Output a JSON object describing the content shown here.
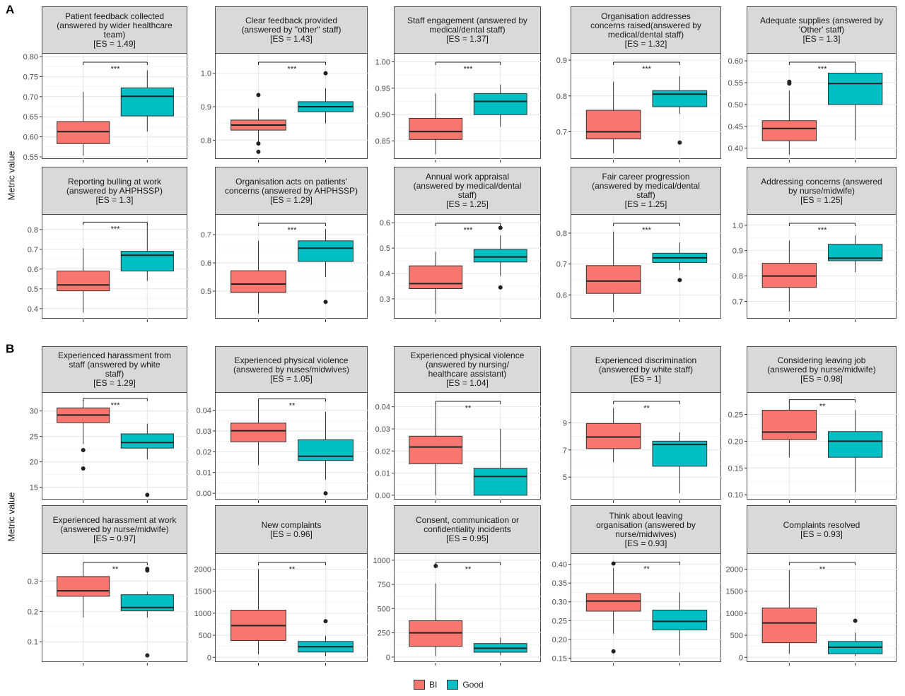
{
  "figure": {
    "panel_labels": [
      "A",
      "B"
    ],
    "y_axis_label": "Metric value",
    "legend": [
      {
        "name": "BI",
        "color": "#F8766D"
      },
      {
        "name": "Good",
        "color": "#00BFC4"
      }
    ]
  },
  "chart_data": [
    {
      "type": "box",
      "panel": "A",
      "title": [
        "Patient feedback collected",
        "(answered by wider healthcare",
        "team)",
        "[ES = 1.49]"
      ],
      "ylim": [
        0.55,
        0.8
      ],
      "yticks": [
        "0.55",
        "0.60",
        "0.65",
        "0.70",
        "0.75",
        "0.80"
      ],
      "significance": "***",
      "series": [
        {
          "name": "BI",
          "whisker_low": 0.553,
          "q1": 0.583,
          "median": 0.613,
          "q3": 0.638,
          "whisker_high": 0.712,
          "outliers": []
        },
        {
          "name": "Good",
          "whisker_low": 0.613,
          "q1": 0.652,
          "median": 0.701,
          "q3": 0.722,
          "whisker_high": 0.766,
          "outliers": []
        }
      ]
    },
    {
      "type": "box",
      "panel": "A",
      "title": [
        "Clear feedback provided",
        "(answered by \"other\" staff)",
        "[ES = 1.43]"
      ],
      "ylim": [
        0.75,
        1.05
      ],
      "yticks": [
        "0.8",
        "0.9",
        "1.0"
      ],
      "significance": "***",
      "series": [
        {
          "name": "BI",
          "whisker_low": 0.79,
          "q1": 0.83,
          "median": 0.845,
          "q3": 0.86,
          "whisker_high": 0.895,
          "outliers": [
            0.935,
            0.79,
            0.765
          ]
        },
        {
          "name": "Good",
          "whisker_low": 0.85,
          "q1": 0.885,
          "median": 0.9,
          "q3": 0.915,
          "whisker_high": 0.955,
          "outliers": [
            1.0
          ]
        }
      ]
    },
    {
      "type": "box",
      "panel": "A",
      "title": [
        "Staff engagement (answered by",
        "medical/dental staff)",
        "[ES = 1.37]"
      ],
      "ylim": [
        0.82,
        1.01
      ],
      "yticks": [
        "0.85",
        "0.90",
        "0.95",
        "1.00"
      ],
      "significance": "***",
      "series": [
        {
          "name": "BI",
          "whisker_low": 0.825,
          "q1": 0.853,
          "median": 0.868,
          "q3": 0.893,
          "whisker_high": 0.94,
          "outliers": []
        },
        {
          "name": "Good",
          "whisker_low": 0.877,
          "q1": 0.9,
          "median": 0.925,
          "q3": 0.94,
          "whisker_high": 0.957,
          "outliers": []
        }
      ]
    },
    {
      "type": "box",
      "panel": "A",
      "title": [
        "Organisation addresses",
        "concerns raised(answered by",
        "medical/dental staff)",
        "[ES = 1.32]"
      ],
      "ylim": [
        0.63,
        0.91
      ],
      "yticks": [
        "0.7",
        "0.8",
        "0.9"
      ],
      "significance": "***",
      "series": [
        {
          "name": "BI",
          "whisker_low": 0.64,
          "q1": 0.68,
          "median": 0.7,
          "q3": 0.76,
          "whisker_high": 0.84,
          "outliers": []
        },
        {
          "name": "Good",
          "whisker_low": 0.75,
          "q1": 0.77,
          "median": 0.805,
          "q3": 0.815,
          "whisker_high": 0.855,
          "outliers": [
            0.67
          ]
        }
      ]
    },
    {
      "type": "box",
      "panel": "A",
      "title": [
        "Adequate supplies (answered by",
        "'Other' staff)",
        "[ES = 1.3]"
      ],
      "ylim": [
        0.38,
        0.61
      ],
      "yticks": [
        "0.40",
        "0.45",
        "0.50",
        "0.55",
        "0.60"
      ],
      "significance": "***",
      "series": [
        {
          "name": "BI",
          "whisker_low": 0.385,
          "q1": 0.417,
          "median": 0.445,
          "q3": 0.463,
          "whisker_high": 0.532,
          "outliers": [
            0.552,
            0.548
          ]
        },
        {
          "name": "Good",
          "whisker_low": 0.418,
          "q1": 0.5,
          "median": 0.548,
          "q3": 0.572,
          "whisker_high": 0.592,
          "outliers": []
        }
      ]
    },
    {
      "type": "box",
      "panel": "A",
      "title": [
        "Reporting bulling at work",
        "(answered by AHPHSSP)",
        "[ES = 1.3]"
      ],
      "ylim": [
        0.36,
        0.86
      ],
      "yticks": [
        "0.4",
        "0.5",
        "0.6",
        "0.7",
        "0.8"
      ],
      "significance": "***",
      "series": [
        {
          "name": "BI",
          "whisker_low": 0.38,
          "q1": 0.49,
          "median": 0.52,
          "q3": 0.59,
          "whisker_high": 0.705,
          "outliers": []
        },
        {
          "name": "Good",
          "whisker_low": 0.54,
          "q1": 0.59,
          "median": 0.67,
          "q3": 0.69,
          "whisker_high": 0.83,
          "outliers": []
        }
      ]
    },
    {
      "type": "box",
      "panel": "A",
      "title": [
        "Organisation acts on patients'",
        "concerns (answered by AHPHSSP)",
        "[ES = 1.29]"
      ],
      "ylim": [
        0.41,
        0.76
      ],
      "yticks": [
        "0.5",
        "0.6",
        "0.7"
      ],
      "significance": "***",
      "series": [
        {
          "name": "BI",
          "whisker_low": 0.42,
          "q1": 0.495,
          "median": 0.525,
          "q3": 0.572,
          "whisker_high": 0.678,
          "outliers": []
        },
        {
          "name": "Good",
          "whisker_low": 0.55,
          "q1": 0.605,
          "median": 0.652,
          "q3": 0.678,
          "whisker_high": 0.72,
          "outliers": [
            0.462
          ]
        }
      ]
    },
    {
      "type": "box",
      "panel": "A",
      "title": [
        "Annual work appraisal",
        "(answered by medical/dental",
        "staff)",
        "[ES = 1.25]"
      ],
      "ylim": [
        0.23,
        0.62
      ],
      "yticks": [
        "0.3",
        "0.4",
        "0.5",
        "0.6"
      ],
      "significance": "***",
      "series": [
        {
          "name": "BI",
          "whisker_low": 0.24,
          "q1": 0.34,
          "median": 0.36,
          "q3": 0.43,
          "whisker_high": 0.485,
          "outliers": []
        },
        {
          "name": "Good",
          "whisker_low": 0.39,
          "q1": 0.445,
          "median": 0.465,
          "q3": 0.495,
          "whisker_high": 0.55,
          "outliers": [
            0.58,
            0.345
          ]
        }
      ]
    },
    {
      "type": "box",
      "panel": "A",
      "title": [
        "Fair career progression",
        "(answered by medical/dental",
        "staff)",
        "[ES = 1.25]"
      ],
      "ylim": [
        0.53,
        0.85
      ],
      "yticks": [
        "0.6",
        "0.7",
        "0.8"
      ],
      "significance": "***",
      "series": [
        {
          "name": "BI",
          "whisker_low": 0.545,
          "q1": 0.605,
          "median": 0.645,
          "q3": 0.695,
          "whisker_high": 0.805,
          "outliers": []
        },
        {
          "name": "Good",
          "whisker_low": 0.68,
          "q1": 0.705,
          "median": 0.72,
          "q3": 0.735,
          "whisker_high": 0.77,
          "outliers": [
            0.648
          ]
        }
      ]
    },
    {
      "type": "box",
      "panel": "A",
      "title": [
        "Addressing concerns (answered",
        "by nurse/midwife)",
        "[ES = 1.25]"
      ],
      "ylim": [
        0.64,
        1.03
      ],
      "yticks": [
        "0.7",
        "0.8",
        "0.9",
        "1.0"
      ],
      "significance": "***",
      "series": [
        {
          "name": "BI",
          "whisker_low": 0.66,
          "q1": 0.755,
          "median": 0.8,
          "q3": 0.85,
          "whisker_high": 0.94,
          "outliers": []
        },
        {
          "name": "Good",
          "whisker_low": 0.815,
          "q1": 0.86,
          "median": 0.87,
          "q3": 0.925,
          "whisker_high": 0.96,
          "outliers": []
        }
      ]
    },
    {
      "type": "box",
      "panel": "B",
      "title": [
        "Experienced harassment from",
        "staff (answered by white",
        "staff)",
        "[ES = 1.29]"
      ],
      "ylim": [
        13,
        33
      ],
      "yticks": [
        "15",
        "20",
        "25",
        "30"
      ],
      "significance": "***",
      "series": [
        {
          "name": "BI",
          "whisker_low": 23.5,
          "q1": 27.7,
          "median": 29.2,
          "q3": 30.6,
          "whisker_high": 32.2,
          "outliers": [
            22.3,
            18.7
          ]
        },
        {
          "name": "Good",
          "whisker_low": 20.5,
          "q1": 22.7,
          "median": 23.8,
          "q3": 25.5,
          "whisker_high": 27.5,
          "outliers": [
            13.5
          ]
        }
      ]
    },
    {
      "type": "box",
      "panel": "B",
      "title": [
        "Experienced physical violence",
        "(answered by nuses/midwives)",
        "[ES = 1.05]"
      ],
      "ylim": [
        -0.002,
        0.047
      ],
      "yticks": [
        "0.00",
        "0.01",
        "0.02",
        "0.03",
        "0.04"
      ],
      "significance": "**",
      "series": [
        {
          "name": "BI",
          "whisker_low": 0.0135,
          "q1": 0.0248,
          "median": 0.0301,
          "q3": 0.0338,
          "whisker_high": 0.0448,
          "outliers": []
        },
        {
          "name": "Good",
          "whisker_low": 0.0065,
          "q1": 0.0158,
          "median": 0.0178,
          "q3": 0.0258,
          "whisker_high": 0.0392,
          "outliers": [
            0.0
          ]
        }
      ]
    },
    {
      "type": "box",
      "panel": "B",
      "title": [
        "Experienced physical violence",
        "(answered by nursing/",
        "healthcare assistant)",
        "[ES = 1.04]"
      ],
      "ylim": [
        -0.001,
        0.045
      ],
      "yticks": [
        "0.00",
        "0.01",
        "0.02",
        "0.03",
        "0.04"
      ],
      "significance": "**",
      "series": [
        {
          "name": "BI",
          "whisker_low": 0.0,
          "q1": 0.0142,
          "median": 0.0218,
          "q3": 0.0267,
          "whisker_high": 0.0418,
          "outliers": []
        },
        {
          "name": "Good",
          "whisker_low": 0.0,
          "q1": 0.0,
          "median": 0.0085,
          "q3": 0.0122,
          "whisker_high": 0.03,
          "outliers": []
        }
      ]
    },
    {
      "type": "box",
      "panel": "B",
      "title": [
        "Experienced discrimination",
        "(answered by white staff)",
        "[ES = 1]"
      ],
      "ylim": [
        3.5,
        11
      ],
      "yticks": [
        "5",
        "7",
        "9"
      ],
      "significance": "**",
      "series": [
        {
          "name": "BI",
          "whisker_low": 6.1,
          "q1": 7.1,
          "median": 7.95,
          "q3": 8.95,
          "whisker_high": 10.1,
          "outliers": []
        },
        {
          "name": "Good",
          "whisker_low": 3.8,
          "q1": 5.8,
          "median": 7.4,
          "q3": 7.65,
          "whisker_high": 8.3,
          "outliers": []
        }
      ]
    },
    {
      "type": "box",
      "panel": "B",
      "title": [
        "Considering leaving job",
        "(answered by nurse/midwife)",
        "[ES = 0.98]"
      ],
      "ylim": [
        0.095,
        0.285
      ],
      "yticks": [
        "0.10",
        "0.15",
        "0.20",
        "0.25"
      ],
      "significance": "**",
      "series": [
        {
          "name": "BI",
          "whisker_low": 0.17,
          "q1": 0.203,
          "median": 0.217,
          "q3": 0.258,
          "whisker_high": 0.275,
          "outliers": []
        },
        {
          "name": "Good",
          "whisker_low": 0.105,
          "q1": 0.17,
          "median": 0.2,
          "q3": 0.218,
          "whisker_high": 0.258,
          "outliers": []
        }
      ]
    },
    {
      "type": "box",
      "panel": "B",
      "title": [
        "Experienced harassment at work",
        "(answered by nurse/midwife)",
        "[ES = 0.97]"
      ],
      "ylim": [
        0.04,
        0.38
      ],
      "yticks": [
        "0.1",
        "0.2",
        "0.3"
      ],
      "significance": "**",
      "series": [
        {
          "name": "BI",
          "whisker_low": 0.18,
          "q1": 0.25,
          "median": 0.268,
          "q3": 0.315,
          "whisker_high": 0.352,
          "outliers": []
        },
        {
          "name": "Good",
          "whisker_low": 0.18,
          "q1": 0.202,
          "median": 0.213,
          "q3": 0.255,
          "whisker_high": 0.265,
          "outliers": [
            0.34,
            0.335,
            0.055
          ]
        }
      ]
    },
    {
      "type": "box",
      "panel": "B",
      "title": [
        "New complaints",
        "[ES = 0.96]"
      ],
      "ylim": [
        -60,
        2280
      ],
      "yticks": [
        "0",
        "500",
        "1000",
        "1500",
        "2000"
      ],
      "significance": "**",
      "series": [
        {
          "name": "BI",
          "whisker_low": 70,
          "q1": 380,
          "median": 720,
          "q3": 1070,
          "whisker_high": 2000,
          "outliers": []
        },
        {
          "name": "Good",
          "whisker_low": 30,
          "q1": 120,
          "median": 240,
          "q3": 360,
          "whisker_high": 490,
          "outliers": [
            820
          ]
        }
      ]
    },
    {
      "type": "box",
      "panel": "B",
      "title": [
        "Consent, communication or",
        "confidentiality incidents",
        "[ES = 0.95]"
      ],
      "ylim": [
        -30,
        1035
      ],
      "yticks": [
        "0",
        "250",
        "500",
        "750",
        "1000"
      ],
      "significance": "**",
      "series": [
        {
          "name": "BI",
          "whisker_low": 10,
          "q1": 110,
          "median": 250,
          "q3": 375,
          "whisker_high": 760,
          "outliers": [
            940
          ]
        },
        {
          "name": "Good",
          "whisker_low": 20,
          "q1": 50,
          "median": 90,
          "q3": 140,
          "whisker_high": 200,
          "outliers": []
        }
      ]
    },
    {
      "type": "box",
      "panel": "B",
      "title": [
        "Think about leaving",
        "organisation (answered by",
        "nurse/midwives)",
        "[ES = 0.93]"
      ],
      "ylim": [
        0.145,
        0.42
      ],
      "yticks": [
        "0.15",
        "0.20",
        "0.25",
        "0.30",
        "0.35",
        "0.40"
      ],
      "significance": "**",
      "series": [
        {
          "name": "BI",
          "whisker_low": 0.215,
          "q1": 0.275,
          "median": 0.302,
          "q3": 0.322,
          "whisker_high": 0.39,
          "outliers": [
            0.402,
            0.168
          ]
        },
        {
          "name": "Good",
          "whisker_low": 0.158,
          "q1": 0.225,
          "median": 0.248,
          "q3": 0.278,
          "whisker_high": 0.325,
          "outliers": []
        }
      ]
    },
    {
      "type": "box",
      "panel": "B",
      "title": [
        "Complaints resolved",
        "[ES = 0.93]"
      ],
      "ylim": [
        -60,
        2280
      ],
      "yticks": [
        "0",
        "500",
        "1000",
        "1500",
        "2000"
      ],
      "significance": "**",
      "series": [
        {
          "name": "BI",
          "whisker_low": 80,
          "q1": 330,
          "median": 780,
          "q3": 1120,
          "whisker_high": 1980,
          "outliers": []
        },
        {
          "name": "Good",
          "whisker_low": 30,
          "q1": 80,
          "median": 230,
          "q3": 360,
          "whisker_high": 560,
          "outliers": [
            830
          ]
        }
      ]
    }
  ]
}
